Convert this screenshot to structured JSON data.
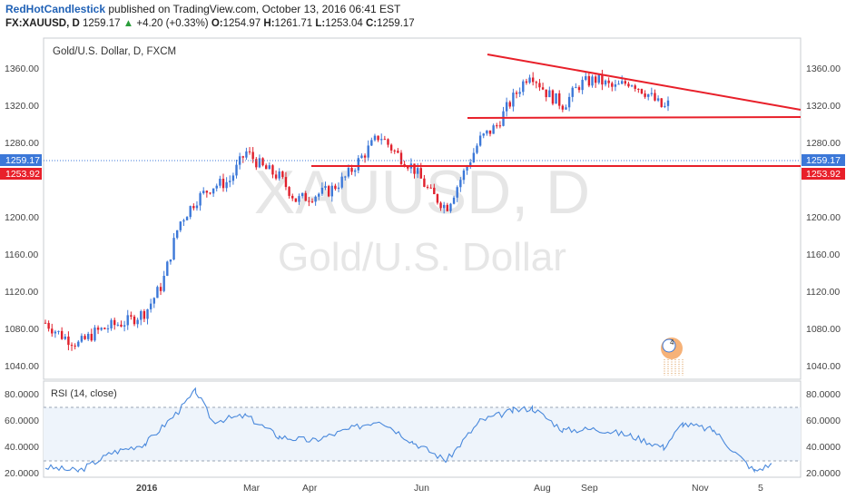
{
  "header": {
    "author": "RedHotCandlestick",
    "published_text": "published on TradingView.com, October 13, 2016 06:41 EST",
    "symbol": "FX:XAUUSD, D",
    "last": "1259.17",
    "change_arrow": "▲",
    "change": "+4.20 (+0.33%)",
    "o_label": "O:",
    "o": "1254.97",
    "h_label": "H:",
    "h": "1261.71",
    "l_label": "L:",
    "l": "1253.04",
    "c_label": "C:",
    "c": "1259.17"
  },
  "chart": {
    "title": "Gold/U.S. Dollar, D, FXCM",
    "watermark_symbol": "XAUUSD, D",
    "watermark_name": "Gold/U.S. Dollar",
    "price_ticks": [
      "1360.00",
      "1320.00",
      "1280.00",
      "1240.00",
      "1200.00",
      "1160.00",
      "1120.00",
      "1080.00",
      "1040.00"
    ],
    "current_price_label": "1259.17",
    "support_price_label": "1253.92",
    "rsi_title": "RSI (14, close)",
    "rsi_ticks": [
      "80.0000",
      "60.0000",
      "40.0000",
      "20.0000"
    ],
    "x_ticks": [
      "2016",
      "Mar",
      "Apr",
      "Jun",
      "Aug",
      "Sep",
      "Nov",
      "5"
    ],
    "event_badge": "4",
    "colors": {
      "up": "#3c78d8",
      "down": "#e0202c",
      "trendline": "#e8202a",
      "rsi_line": "#4a89dc",
      "rsi_band": "#eef4fb"
    }
  },
  "chart_data": {
    "type": "candlestick",
    "title": "Gold/U.S. Dollar, D, FXCM",
    "symbol": "FX:XAUUSD",
    "timeframe": "D",
    "ylim": [
      1030,
      1380
    ],
    "price_path": [
      [
        "2015-12-14",
        1088
      ],
      [
        "2015-12-21",
        1074
      ],
      [
        "2015-12-28",
        1065
      ],
      [
        "2016-01-04",
        1078
      ],
      [
        "2016-01-11",
        1085
      ],
      [
        "2016-01-18",
        1090
      ],
      [
        "2016-01-25",
        1100
      ],
      [
        "2016-02-01",
        1130
      ],
      [
        "2016-02-08",
        1195
      ],
      [
        "2016-02-15",
        1220
      ],
      [
        "2016-02-22",
        1235
      ],
      [
        "2016-02-29",
        1240
      ],
      [
        "2016-03-07",
        1272
      ],
      [
        "2016-03-14",
        1255
      ],
      [
        "2016-03-21",
        1245
      ],
      [
        "2016-03-28",
        1220
      ],
      [
        "2016-04-04",
        1225
      ],
      [
        "2016-04-11",
        1230
      ],
      [
        "2016-04-18",
        1245
      ],
      [
        "2016-04-25",
        1268
      ],
      [
        "2016-05-02",
        1290
      ],
      [
        "2016-05-09",
        1270
      ],
      [
        "2016-05-16",
        1255
      ],
      [
        "2016-05-23",
        1228
      ],
      [
        "2016-05-30",
        1212
      ],
      [
        "2016-06-06",
        1248
      ],
      [
        "2016-06-13",
        1285
      ],
      [
        "2016-06-20",
        1300
      ],
      [
        "2016-06-24",
        1318
      ],
      [
        "2016-07-04",
        1358
      ],
      [
        "2016-07-11",
        1335
      ],
      [
        "2016-07-18",
        1322
      ],
      [
        "2016-07-25",
        1345
      ],
      [
        "2016-08-01",
        1350
      ],
      [
        "2016-08-08",
        1340
      ],
      [
        "2016-08-15",
        1348
      ],
      [
        "2016-08-22",
        1335
      ],
      [
        "2016-08-29",
        1318
      ],
      [
        "2016-09-06",
        1340
      ],
      [
        "2016-09-12",
        1325
      ],
      [
        "2016-09-19",
        1330
      ],
      [
        "2016-09-26",
        1318
      ],
      [
        "2016-10-03",
        1272
      ],
      [
        "2016-10-06",
        1255
      ],
      [
        "2016-10-13",
        1259.17
      ]
    ],
    "annotations": {
      "descending_trendline": [
        [
          "2016-07-05",
          1374
        ],
        [
          "2016-11-20",
          1312
        ]
      ],
      "resistance_line": [
        [
          "2016-06-24",
          1306
        ],
        [
          "2016-11-20",
          1308
        ]
      ],
      "support_line": {
        "from": "2016-04-05",
        "price": 1253.92
      },
      "current_price_line": 1259.17
    },
    "rsi": {
      "title": "RSI (14, close)",
      "ylim": [
        20,
        90
      ],
      "bands": [
        30,
        70
      ],
      "values": [
        [
          "2015-12-14",
          27
        ],
        [
          "2015-12-28",
          24
        ],
        [
          "2016-01-11",
          38
        ],
        [
          "2016-01-25",
          45
        ],
        [
          "2016-02-08",
          70
        ],
        [
          "2016-02-15",
          85
        ],
        [
          "2016-02-22",
          62
        ],
        [
          "2016-03-07",
          66
        ],
        [
          "2016-03-21",
          50
        ],
        [
          "2016-04-04",
          47
        ],
        [
          "2016-04-18",
          55
        ],
        [
          "2016-05-02",
          63
        ],
        [
          "2016-05-16",
          46
        ],
        [
          "2016-05-30",
          32
        ],
        [
          "2016-06-13",
          62
        ],
        [
          "2016-06-27",
          70
        ],
        [
          "2016-07-05",
          72
        ],
        [
          "2016-07-18",
          55
        ],
        [
          "2016-08-01",
          56
        ],
        [
          "2016-08-15",
          51
        ],
        [
          "2016-08-29",
          42
        ],
        [
          "2016-09-06",
          60
        ],
        [
          "2016-09-19",
          55
        ],
        [
          "2016-09-28",
          38
        ],
        [
          "2016-10-06",
          24
        ],
        [
          "2016-10-13",
          29
        ]
      ]
    }
  }
}
